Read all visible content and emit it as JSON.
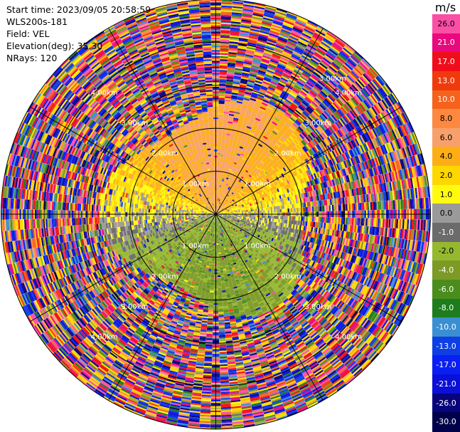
{
  "header": {
    "start_time": "Start time: 2023/09/05 20:58:59",
    "instrument": "WLS200s-181",
    "field": "Field: VEL",
    "elevation": "Elevation(deg): 35.30",
    "nrays": "NRays: 120"
  },
  "colorbar": {
    "unit": "m/s",
    "labels": [
      "26.0",
      "21.0",
      "17.0",
      "13.0",
      "10.0",
      "8.0",
      "6.0",
      "4.0",
      "2.0",
      "1.0",
      "0.0",
      "-1.0",
      "-2.0",
      "-4.0",
      "-6.0",
      "-8.0",
      "-10.0",
      "-13.0",
      "-17.0",
      "-21.0",
      "-26.0",
      "-30.0"
    ],
    "colors": [
      "#fb4fa6",
      "#e9097e",
      "#f00d1b",
      "#f13a0c",
      "#f5621d",
      "#fd8840",
      "#f8a06c",
      "#fdae16",
      "#ffd700",
      "#fefb0e",
      "#9a9a9a",
      "#6b6b6b",
      "#95b82e",
      "#7c9a25",
      "#4a8d1d",
      "#1d7c1d",
      "#3a8fd3",
      "#0e3fe4",
      "#0a1ff2",
      "#0b10d6",
      "#07047c",
      "#00004a"
    ]
  },
  "range_ring_labels": [
    "1.00km",
    "1.00km",
    "1.00km",
    "1.00km",
    "2.00km",
    "2.00km",
    "2.00km",
    "2.00km",
    "3.00km",
    "3.00km",
    "3.00km",
    "3.00km",
    "4.00km",
    "4.00km",
    "4.00km",
    "4.00km",
    "3.00km"
  ],
  "chart_data": {
    "type": "heatmap",
    "subtype": "polar PPI radar scan",
    "field": "VEL",
    "unit": "m/s",
    "nrays": 120,
    "elevation_deg": 35.3,
    "range_rings_km": [
      1.0,
      2.0,
      3.0,
      4.0,
      5.0
    ],
    "max_range_km": 5.0,
    "colorbar_ticks": [
      26.0,
      21.0,
      17.0,
      13.0,
      10.0,
      8.0,
      6.0,
      4.0,
      2.0,
      1.0,
      0.0,
      -1.0,
      -2.0,
      -4.0,
      -6.0,
      -8.0,
      -10.0,
      -13.0,
      -17.0,
      -21.0,
      -26.0,
      -30.0
    ],
    "vmin": -30.0,
    "vmax": 26.0,
    "azimuth_lines_deg": [
      0,
      30,
      60,
      90,
      120,
      150,
      180,
      210,
      240,
      270,
      300,
      330
    ],
    "data_pattern": {
      "near_range_north": "positive 2 to 6 m/s (yellow/orange)",
      "near_range_south": "negative -2 to -8 m/s (green)",
      "near_range_east_west": "about 0 m/s (gray)",
      "beyond_about_2.5km": "noise spanning full color range"
    }
  }
}
